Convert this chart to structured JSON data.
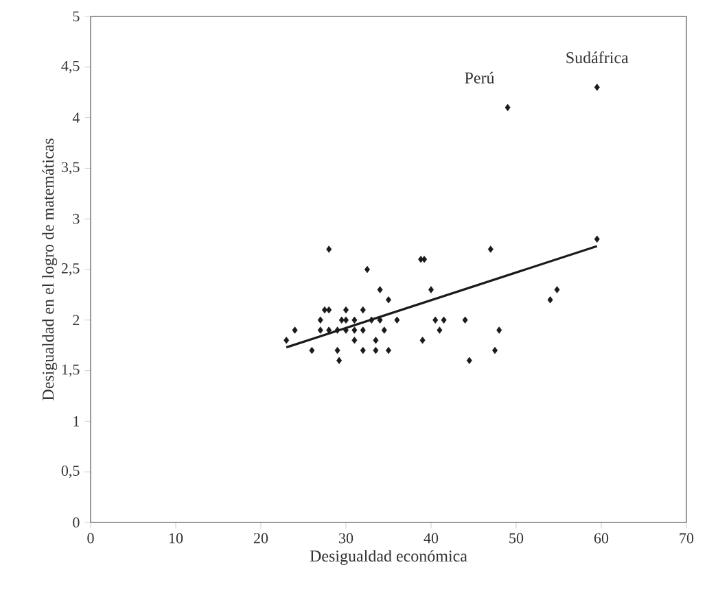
{
  "chart_data": {
    "type": "scatter",
    "xlabel": "Desigualdad económica",
    "ylabel": "Desigualdad en el  logro de  matemáticas",
    "marker": "diamond",
    "grid": false,
    "xlim": [
      0,
      70
    ],
    "xticks": [
      0,
      10,
      20,
      30,
      40,
      50,
      60,
      70
    ],
    "ylim": [
      0,
      5
    ],
    "yticks": [
      0,
      {
        "value": 0.5,
        "label": "0,5"
      },
      1,
      {
        "value": 1.5,
        "label": "1,5"
      },
      2,
      {
        "value": 2.5,
        "label": "2,5"
      },
      3,
      {
        "value": 3.5,
        "label": "3,5"
      },
      4,
      {
        "value": 4.5,
        "label": "4,5"
      },
      5
    ],
    "series": [
      {
        "color": "#1a1a1a",
        "x": [
          23,
          24,
          26,
          27,
          27,
          27.5,
          28,
          28,
          28,
          29,
          29,
          29.2,
          29.5,
          30,
          30,
          30,
          31,
          31,
          31,
          32,
          32,
          32,
          32.5,
          33,
          33.5,
          33.5,
          34,
          34,
          34.5,
          35,
          35,
          36,
          38.8,
          39.2,
          39,
          40,
          40.5,
          41,
          41.5,
          44,
          44.5,
          47,
          47.5,
          48,
          49,
          54,
          54.8,
          59.5,
          59.5
        ],
        "values": [
          1.8,
          1.9,
          1.7,
          1.9,
          2.0,
          2.1,
          2.1,
          2.7,
          1.9,
          1.9,
          1.7,
          1.6,
          2.0,
          2.0,
          2.1,
          1.9,
          1.9,
          2.0,
          1.8,
          2.1,
          1.9,
          1.7,
          2.5,
          2.0,
          1.8,
          1.7,
          2.3,
          2.0,
          1.9,
          1.7,
          2.2,
          2.0,
          2.6,
          2.6,
          1.8,
          2.3,
          2.0,
          1.9,
          2.0,
          2.0,
          1.6,
          2.7,
          1.7,
          1.9,
          4.1,
          2.2,
          2.3,
          4.3,
          2.8
        ]
      },
      {
        "type": "line",
        "color": "#1a1a1a",
        "marker": "none",
        "x": [
          23,
          59.5
        ],
        "values": [
          1.73,
          2.73
        ]
      }
    ],
    "annotations": [
      {
        "text": "Perú",
        "x": 49,
        "y": 4.1
      },
      {
        "text": "Sudáfrica",
        "x": 59.5,
        "y": 4.3
      }
    ]
  }
}
